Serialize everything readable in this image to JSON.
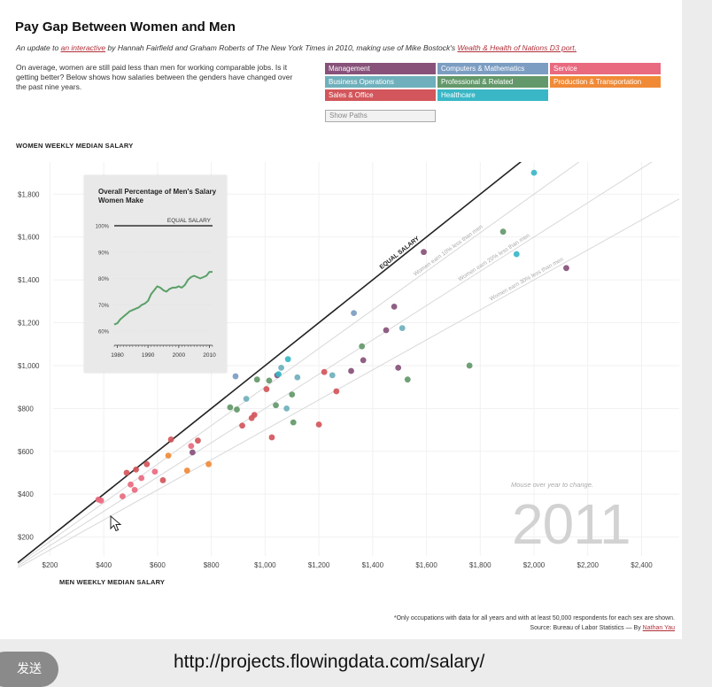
{
  "header": {
    "title": "Pay Gap Between Women and Men",
    "subtitle_pre": "An update to",
    "subtitle_link1": "an interactive",
    "subtitle_mid": "by Hannah Fairfield and Graham Roberts of The New York Times in 2010, making use of Mike Bostock's",
    "subtitle_link2": "Wealth & Health of Nations D3 port."
  },
  "intro": "On average, women are still paid less than men for working comparable jobs. Is it getting better? Below shows how salaries between the genders have changed over the past nine years.",
  "legend": [
    {
      "label": "Management",
      "color": "#87517a"
    },
    {
      "label": "Computers & Mathematics",
      "color": "#7c9dc2"
    },
    {
      "label": "Service",
      "color": "#e96a7f"
    },
    {
      "label": "Business Operations",
      "color": "#6fb0bc"
    },
    {
      "label": "Professional & Related",
      "color": "#63986a"
    },
    {
      "label": "Production & Transportation",
      "color": "#f08a37"
    },
    {
      "label": "Sales & Office",
      "color": "#d2565b"
    },
    {
      "label": "Healthcare",
      "color": "#39b7c6"
    }
  ],
  "show_paths_label": "Show Paths",
  "year": "2011",
  "mouse_hint": "Mouse over year to change.",
  "footnote": "*Only occupations with data for all years and with at least 50,000 respondents for each sex are shown.",
  "source_pre": "Source: Bureau of Labor Statistics — By",
  "source_author": "Nathan Yau",
  "url": "http://projects.flowingdata.com/salary/",
  "send_label": "发送",
  "chart_data": {
    "type": "scatter",
    "title": "",
    "xlabel": "MEN WEEKLY MEDIAN SALARY",
    "ylabel": "WOMEN WEEKLY MEDIAN SALARY",
    "xlim": [
      80,
      2540
    ],
    "ylim": [
      0,
      1950
    ],
    "x_ticks": [
      200,
      400,
      600,
      800,
      1000,
      1200,
      1400,
      1600,
      1800,
      2000,
      2200,
      2400
    ],
    "x_tick_labels": [
      "$200",
      "$400",
      "$600",
      "$800",
      "$1,000",
      "$1,200",
      "$1,400",
      "$1,600",
      "$1,800",
      "$2,000",
      "$2,200",
      "$2,400"
    ],
    "y_ticks": [
      200,
      400,
      600,
      800,
      1000,
      1200,
      1400,
      1600,
      1800
    ],
    "y_tick_labels": [
      "$200",
      "$400",
      "$600",
      "$800",
      "$1,000",
      "$1,200",
      "$1,400",
      "$1,600",
      "$1,800"
    ],
    "reference_lines": [
      {
        "ratio": 1.0,
        "label": "EQUAL SALARY",
        "style": "bold"
      },
      {
        "ratio": 0.9,
        "label": "Women earn 10% less than men"
      },
      {
        "ratio": 0.8,
        "label": "Women earn 20% less than men"
      },
      {
        "ratio": 0.7,
        "label": "Women earn 30% less than men"
      }
    ],
    "points": [
      {
        "x": 380,
        "y": 375,
        "c": "#e96a7f"
      },
      {
        "x": 390,
        "y": 370,
        "c": "#e96a7f"
      },
      {
        "x": 470,
        "y": 390,
        "c": "#e96a7f"
      },
      {
        "x": 485,
        "y": 500,
        "c": "#d2565b"
      },
      {
        "x": 500,
        "y": 445,
        "c": "#e96a7f"
      },
      {
        "x": 515,
        "y": 420,
        "c": "#e96a7f"
      },
      {
        "x": 520,
        "y": 515,
        "c": "#d2565b"
      },
      {
        "x": 540,
        "y": 475,
        "c": "#e96a7f"
      },
      {
        "x": 560,
        "y": 540,
        "c": "#d2565b"
      },
      {
        "x": 590,
        "y": 505,
        "c": "#e96a7f"
      },
      {
        "x": 620,
        "y": 465,
        "c": "#d2565b"
      },
      {
        "x": 640,
        "y": 580,
        "c": "#f08a37"
      },
      {
        "x": 650,
        "y": 655,
        "c": "#d2565b"
      },
      {
        "x": 710,
        "y": 510,
        "c": "#f08a37"
      },
      {
        "x": 725,
        "y": 625,
        "c": "#e96a7f"
      },
      {
        "x": 730,
        "y": 595,
        "c": "#87517a"
      },
      {
        "x": 750,
        "y": 650,
        "c": "#d2565b"
      },
      {
        "x": 790,
        "y": 540,
        "c": "#f08a37"
      },
      {
        "x": 870,
        "y": 805,
        "c": "#63986a"
      },
      {
        "x": 890,
        "y": 950,
        "c": "#7c9dc2"
      },
      {
        "x": 895,
        "y": 795,
        "c": "#63986a"
      },
      {
        "x": 915,
        "y": 720,
        "c": "#d2565b"
      },
      {
        "x": 930,
        "y": 845,
        "c": "#6fb0bc"
      },
      {
        "x": 950,
        "y": 755,
        "c": "#d2565b"
      },
      {
        "x": 960,
        "y": 770,
        "c": "#d2565b"
      },
      {
        "x": 970,
        "y": 935,
        "c": "#63986a"
      },
      {
        "x": 1005,
        "y": 890,
        "c": "#d2565b"
      },
      {
        "x": 1015,
        "y": 930,
        "c": "#63986a"
      },
      {
        "x": 1025,
        "y": 665,
        "c": "#d2565b"
      },
      {
        "x": 1040,
        "y": 815,
        "c": "#63986a"
      },
      {
        "x": 1045,
        "y": 955,
        "c": "#87517a"
      },
      {
        "x": 1050,
        "y": 960,
        "c": "#39b7c6"
      },
      {
        "x": 1060,
        "y": 990,
        "c": "#6fb0bc"
      },
      {
        "x": 1080,
        "y": 800,
        "c": "#6fb0bc"
      },
      {
        "x": 1085,
        "y": 1030,
        "c": "#39b7c6"
      },
      {
        "x": 1100,
        "y": 865,
        "c": "#63986a"
      },
      {
        "x": 1105,
        "y": 735,
        "c": "#63986a"
      },
      {
        "x": 1120,
        "y": 945,
        "c": "#6fb0bc"
      },
      {
        "x": 1200,
        "y": 725,
        "c": "#d2565b"
      },
      {
        "x": 1220,
        "y": 970,
        "c": "#d2565b"
      },
      {
        "x": 1250,
        "y": 955,
        "c": "#6fb0bc"
      },
      {
        "x": 1265,
        "y": 880,
        "c": "#d2565b"
      },
      {
        "x": 1320,
        "y": 975,
        "c": "#87517a"
      },
      {
        "x": 1330,
        "y": 1245,
        "c": "#7c9dc2"
      },
      {
        "x": 1360,
        "y": 1090,
        "c": "#63986a"
      },
      {
        "x": 1365,
        "y": 1025,
        "c": "#87517a"
      },
      {
        "x": 1450,
        "y": 1165,
        "c": "#87517a"
      },
      {
        "x": 1480,
        "y": 1275,
        "c": "#87517a"
      },
      {
        "x": 1495,
        "y": 990,
        "c": "#87517a"
      },
      {
        "x": 1510,
        "y": 1175,
        "c": "#6fb0bc"
      },
      {
        "x": 1530,
        "y": 935,
        "c": "#63986a"
      },
      {
        "x": 1590,
        "y": 1530,
        "c": "#87517a"
      },
      {
        "x": 1760,
        "y": 1000,
        "c": "#63986a"
      },
      {
        "x": 1885,
        "y": 1625,
        "c": "#63986a"
      },
      {
        "x": 1935,
        "y": 1520,
        "c": "#39b7c6"
      },
      {
        "x": 2000,
        "y": 1900,
        "c": "#39b7c6"
      },
      {
        "x": 2120,
        "y": 1455,
        "c": "#87517a"
      }
    ],
    "inset": {
      "type": "line",
      "title": "Overall Percentage of Men's Salary Women Make",
      "reference_label": "EQUAL SALARY",
      "x_ticks": [
        1980,
        1990,
        2000,
        2010
      ],
      "y_ticks": [
        60,
        70,
        80,
        90,
        100
      ],
      "y_tick_labels": [
        "60%",
        "70%",
        "80%",
        "90%",
        "100%"
      ],
      "x": [
        1979,
        1980,
        1981,
        1982,
        1983,
        1984,
        1985,
        1986,
        1987,
        1988,
        1989,
        1990,
        1991,
        1992,
        1993,
        1994,
        1995,
        1996,
        1997,
        1998,
        1999,
        2000,
        2001,
        2002,
        2003,
        2004,
        2005,
        2006,
        2007,
        2008,
        2009,
        2010,
        2011
      ],
      "y": [
        62.5,
        63,
        64.5,
        65.5,
        66.5,
        67.5,
        68,
        68.5,
        69,
        70,
        70.5,
        71.5,
        74,
        75.5,
        77,
        76.5,
        75.5,
        75,
        76,
        76.5,
        76.5,
        77,
        76.5,
        77.5,
        79.5,
        80.5,
        81,
        80.5,
        80,
        80.5,
        81,
        82.5,
        82.5
      ]
    }
  }
}
